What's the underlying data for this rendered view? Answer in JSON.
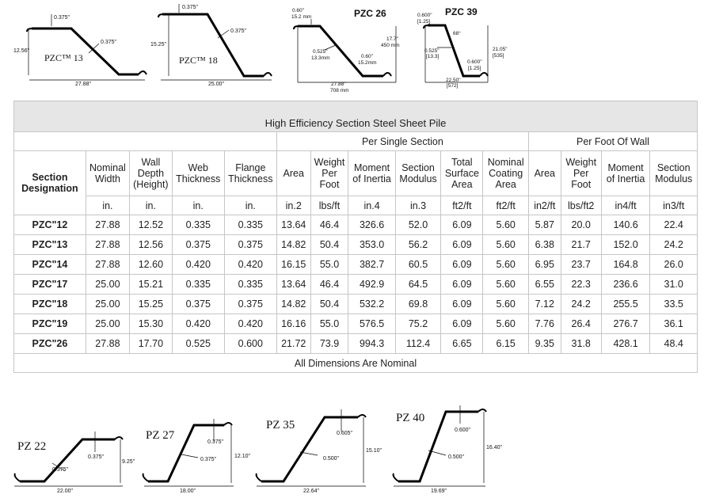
{
  "top_diagrams": {
    "pzc13": {
      "label": "PZC™ 13",
      "web": "0.375\"",
      "flange": "0.375\"",
      "height": "12.56\"",
      "width": "27.88\""
    },
    "pzc18": {
      "label": "PZC™ 18",
      "flange": "0.375\"",
      "web": "0.375\"",
      "height": "15.25\"",
      "width": "25.00\""
    },
    "pzc26": {
      "title": "PZC 26",
      "flange_in": "0.60\"",
      "flange_mm": "15.2 mm",
      "web_in": "0.525\"",
      "web_mm": "13.3mm",
      "flange2_in": "0.60\"",
      "flange2_mm": "15.2mm",
      "height_in": "17.7\"",
      "height_mm": "450 mm",
      "width_in": "27.88\"",
      "width_mm": "708 mm"
    },
    "pzc39": {
      "title": "PZC 39",
      "flange_in": "0.600\"",
      "flange_mm": "[1.25]",
      "angle": "68°",
      "web_in": "0.525\"",
      "web_mm": "[13.3]",
      "flange2_in": "0.600\"",
      "flange2_mm": "[1.25]",
      "height_in": "21.05\"",
      "height_mm": "[535]",
      "width_in": "22.50\"",
      "width_mm": "[572]"
    }
  },
  "table": {
    "title": "High Efficiency Section Steel Sheet Pile",
    "group_single": "Per Single Section",
    "group_wall": "Per Foot Of Wall",
    "headers": {
      "designation": "Section Designation",
      "nominal_width": "Nominal Width",
      "wall_depth": "Wall Depth (Height)",
      "web_thickness": "Web Thickness",
      "flange_thickness": "Flange Thickness",
      "area": "Area",
      "weight": "Weight Per Foot",
      "moment": "Moment of Inertia",
      "modulus": "Section Modulus",
      "total_surface": "Total Surface Area",
      "coating": "Nominal Coating Area",
      "wall_area": "Area",
      "wall_weight": "Weight Per Foot",
      "wall_moment": "Moment of Inertia",
      "wall_modulus": "Section Modulus"
    },
    "units": [
      "in.",
      "in.",
      "in.",
      "in.",
      "in.2",
      "lbs/ft",
      "in.4",
      "in.3",
      "ft2/ft",
      "ft2/ft",
      "in2/ft",
      "lbs/ft2",
      "in4/ft",
      "in3/ft"
    ],
    "rows": [
      [
        "PZC\"12",
        "27.88",
        "12.52",
        "0.335",
        "0.335",
        "13.64",
        "46.4",
        "326.6",
        "52.0",
        "6.09",
        "5.60",
        "5.87",
        "20.0",
        "140.6",
        "22.4"
      ],
      [
        "PZC\"13",
        "27.88",
        "12.56",
        "0.375",
        "0.375",
        "14.82",
        "50.4",
        "353.0",
        "56.2",
        "6.09",
        "5.60",
        "6.38",
        "21.7",
        "152.0",
        "24.2"
      ],
      [
        "PZC\"14",
        "27.88",
        "12.60",
        "0.420",
        "0.420",
        "16.15",
        "55.0",
        "382.7",
        "60.5",
        "6.09",
        "5.60",
        "6.95",
        "23.7",
        "164.8",
        "26.0"
      ],
      [
        "PZC\"17",
        "25.00",
        "15.21",
        "0.335",
        "0.335",
        "13.64",
        "46.4",
        "492.9",
        "64.5",
        "6.09",
        "5.60",
        "6.55",
        "22.3",
        "236.6",
        "31.0"
      ],
      [
        "PZC\"18",
        "25.00",
        "15.25",
        "0.375",
        "0.375",
        "14.82",
        "50.4",
        "532.2",
        "69.8",
        "6.09",
        "5.60",
        "7.12",
        "24.2",
        "255.5",
        "33.5"
      ],
      [
        "PZC\"19",
        "25.00",
        "15.30",
        "0.420",
        "0.420",
        "16.16",
        "55.0",
        "576.5",
        "75.2",
        "6.09",
        "5.60",
        "7.76",
        "26.4",
        "276.7",
        "36.1"
      ],
      [
        "PZC\"26",
        "27.88",
        "17.70",
        "0.525",
        "0.600",
        "21.72",
        "73.9",
        "994.3",
        "112.4",
        "6.65",
        "6.15",
        "9.35",
        "31.8",
        "428.1",
        "48.4"
      ]
    ],
    "footer": "All Dimensions Are Nominal"
  },
  "bottom_diagrams": {
    "pz22": {
      "label": "PZ 22",
      "flange": "0.375\"",
      "web": "0.375\"",
      "height": "9.25\"",
      "width": "22.00\""
    },
    "pz27": {
      "label": "PZ 27",
      "flange": "0.375\"",
      "web": "0.375\"",
      "height": "12.10\"",
      "width": "18.00\""
    },
    "pz35": {
      "label": "PZ 35",
      "flange": "0.605\"",
      "web": "0.500\"",
      "height": "15.10\"",
      "width": "22.64\""
    },
    "pz40": {
      "label": "PZ 40",
      "flange": "0.600\"",
      "web": "0.500\"",
      "height": "16.40\"",
      "width": "19.69\""
    }
  }
}
